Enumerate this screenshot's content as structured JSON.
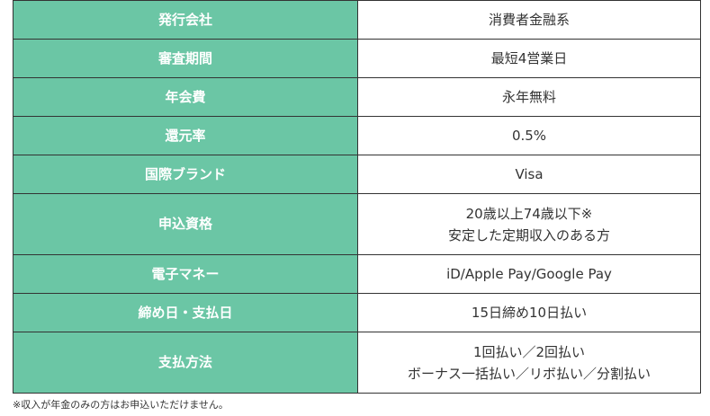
{
  "table": {
    "rows": [
      {
        "label": "発行会社",
        "lines": [
          "消費者金融系"
        ]
      },
      {
        "label": "審査期間",
        "lines": [
          "最短4営業日"
        ]
      },
      {
        "label": "年会費",
        "lines": [
          "永年無料"
        ]
      },
      {
        "label": "還元率",
        "lines": [
          "0.5%"
        ]
      },
      {
        "label": "国際ブランド",
        "lines": [
          "Visa"
        ]
      },
      {
        "label": "申込資格",
        "lines": [
          "20歳以上74歳以下※",
          "安定した定期収入のある方"
        ]
      },
      {
        "label": "電子マネー",
        "lines": [
          "iD/Apple Pay/Google Pay"
        ]
      },
      {
        "label": "締め日・支払日",
        "lines": [
          "15日締め10日払い"
        ]
      },
      {
        "label": "支払方法",
        "lines": [
          "1回払い／2回払い",
          "ボーナス一括払い／リボ払い／分割払い"
        ]
      }
    ]
  },
  "footnote": "※収入が年金のみの方はお申込いただけません。",
  "colors": {
    "header_bg": "#6bc6a5",
    "header_text": "#ffffff",
    "border": "#333333",
    "value_text": "#333333"
  }
}
